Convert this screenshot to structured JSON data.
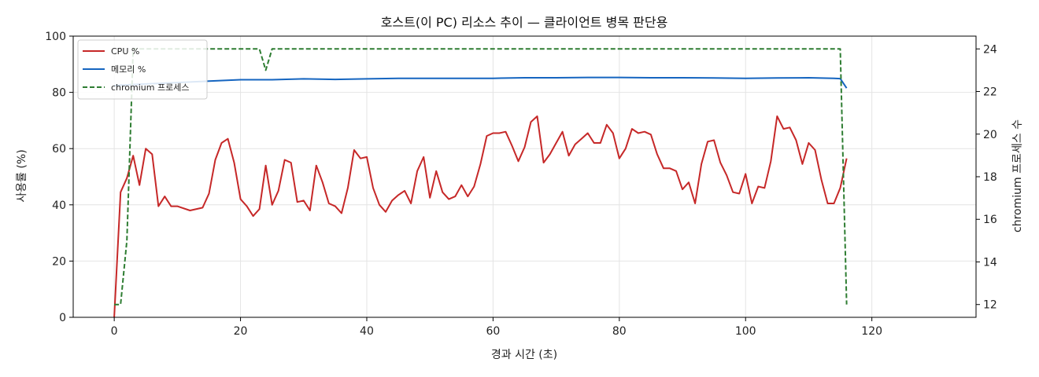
{
  "chart_data": {
    "type": "line",
    "title": "호스트(이 PC) 리소스 추이 — 클라이언트 병목 판단용",
    "xlabel": "경과 시간 (초)",
    "ylabel": "사용률 (%)",
    "y2label": "chromium 프로세스 수",
    "xlim": [
      -6.5,
      136.5
    ],
    "ylim": [
      0,
      100
    ],
    "y2lim": [
      11.4,
      24.6
    ],
    "xticks": [
      "0",
      "20",
      "40",
      "60",
      "80",
      "100",
      "120"
    ],
    "yticks": [
      "0",
      "20",
      "40",
      "60",
      "80",
      "100"
    ],
    "y2ticks": [
      "12",
      "14",
      "16",
      "18",
      "20",
      "22",
      "24"
    ],
    "grid": true,
    "legend_position": "top-left",
    "series": [
      {
        "name": "CPU %",
        "axis": "left",
        "color": "#c62828",
        "style": "solid",
        "points": [
          [
            0,
            0
          ],
          [
            1,
            44.5
          ],
          [
            2,
            49.5
          ],
          [
            3,
            57.5
          ],
          [
            4,
            47
          ],
          [
            5,
            60
          ],
          [
            6,
            58
          ],
          [
            7,
            39.5
          ],
          [
            8,
            43
          ],
          [
            9,
            39.5
          ],
          [
            10,
            39.5
          ],
          [
            12,
            38
          ],
          [
            14,
            39
          ],
          [
            15,
            44
          ],
          [
            16,
            56
          ],
          [
            17,
            62
          ],
          [
            18,
            63.5
          ],
          [
            19,
            55
          ],
          [
            20,
            42
          ],
          [
            21,
            39.5
          ],
          [
            22,
            36
          ],
          [
            23,
            38.5
          ],
          [
            24,
            54
          ],
          [
            25,
            40
          ],
          [
            26,
            45
          ],
          [
            27,
            56
          ],
          [
            28,
            55
          ],
          [
            29,
            41
          ],
          [
            30,
            41.5
          ],
          [
            31,
            38
          ],
          [
            32,
            54
          ],
          [
            33,
            48
          ],
          [
            34,
            40.5
          ],
          [
            35,
            39.5
          ],
          [
            36,
            37
          ],
          [
            37,
            46
          ],
          [
            38,
            59.5
          ],
          [
            39,
            56.5
          ],
          [
            40,
            57
          ],
          [
            41,
            46
          ],
          [
            42,
            40
          ],
          [
            43,
            37.5
          ],
          [
            44,
            41.5
          ],
          [
            45,
            43.5
          ],
          [
            46,
            45
          ],
          [
            47,
            40.5
          ],
          [
            48,
            52
          ],
          [
            49,
            57
          ],
          [
            50,
            42.5
          ],
          [
            51,
            52
          ],
          [
            52,
            44.5
          ],
          [
            53,
            42
          ],
          [
            54,
            43
          ],
          [
            55,
            47
          ],
          [
            56,
            43
          ],
          [
            57,
            46.5
          ],
          [
            58,
            54.5
          ],
          [
            59,
            64.5
          ],
          [
            60,
            65.5
          ],
          [
            61,
            65.5
          ],
          [
            62,
            66
          ],
          [
            63,
            61
          ],
          [
            64,
            55.5
          ],
          [
            65,
            60.5
          ],
          [
            66,
            69.5
          ],
          [
            67,
            71.5
          ],
          [
            68,
            55
          ],
          [
            69,
            58
          ],
          [
            70,
            62
          ],
          [
            71,
            66
          ],
          [
            72,
            57.5
          ],
          [
            73,
            61.5
          ],
          [
            74,
            63.5
          ],
          [
            75,
            65.5
          ],
          [
            76,
            62
          ],
          [
            77,
            62
          ],
          [
            78,
            68.5
          ],
          [
            79,
            65.5
          ],
          [
            80,
            56.5
          ],
          [
            81,
            60
          ],
          [
            82,
            67
          ],
          [
            83,
            65.5
          ],
          [
            84,
            66
          ],
          [
            85,
            65
          ],
          [
            86,
            58
          ],
          [
            87,
            53
          ],
          [
            88,
            53
          ],
          [
            89,
            52
          ],
          [
            90,
            45.5
          ],
          [
            91,
            48
          ],
          [
            92,
            40.5
          ],
          [
            93,
            54.5
          ],
          [
            94,
            62.5
          ],
          [
            95,
            63
          ],
          [
            96,
            55
          ],
          [
            97,
            50.5
          ],
          [
            98,
            44.5
          ],
          [
            99,
            44
          ],
          [
            100,
            51
          ],
          [
            101,
            40.5
          ],
          [
            102,
            46.5
          ],
          [
            103,
            46
          ],
          [
            104,
            55.5
          ],
          [
            105,
            71.5
          ],
          [
            106,
            67
          ],
          [
            107,
            67.5
          ],
          [
            108,
            63
          ],
          [
            109,
            54.5
          ],
          [
            110,
            62
          ],
          [
            111,
            59.5
          ],
          [
            112,
            49
          ],
          [
            113,
            40.5
          ],
          [
            114,
            40.5
          ],
          [
            115,
            46
          ],
          [
            116,
            56.5
          ]
        ]
      },
      {
        "name": "메모리 %",
        "axis": "left",
        "color": "#1565c0",
        "style": "solid",
        "points": [
          [
            0,
            82.5
          ],
          [
            5,
            83
          ],
          [
            10,
            83.5
          ],
          [
            15,
            84
          ],
          [
            20,
            84.5
          ],
          [
            25,
            84.5
          ],
          [
            30,
            84.8
          ],
          [
            35,
            84.6
          ],
          [
            40,
            84.8
          ],
          [
            45,
            85
          ],
          [
            50,
            85
          ],
          [
            55,
            85
          ],
          [
            60,
            85
          ],
          [
            65,
            85.2
          ],
          [
            70,
            85.2
          ],
          [
            75,
            85.3
          ],
          [
            80,
            85.3
          ],
          [
            85,
            85.2
          ],
          [
            90,
            85.2
          ],
          [
            95,
            85.1
          ],
          [
            100,
            85
          ],
          [
            105,
            85.1
          ],
          [
            110,
            85.2
          ],
          [
            114,
            85
          ],
          [
            115,
            84.9
          ],
          [
            116,
            81.5
          ]
        ]
      },
      {
        "name": "chromium 프로세스",
        "axis": "right",
        "color": "#2e7d32",
        "style": "dashed",
        "points": [
          [
            0,
            12
          ],
          [
            1,
            12
          ],
          [
            2,
            15
          ],
          [
            3,
            24
          ],
          [
            23,
            24
          ],
          [
            24,
            23
          ],
          [
            25,
            24
          ],
          [
            115,
            24
          ],
          [
            116,
            12
          ]
        ]
      }
    ]
  }
}
